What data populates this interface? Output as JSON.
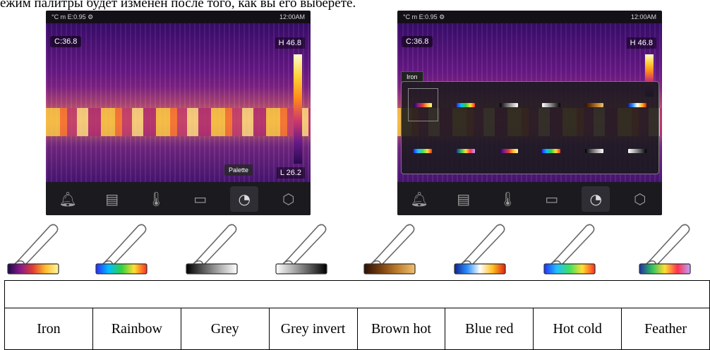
{
  "caption_top": "ежим палитры будет изменен после того, как вы его выберете.",
  "screens": [
    {
      "status": {
        "left": "°C  m  E:0.95  ⚙",
        "right": "12:00AM"
      },
      "center_temp": "C:36.8",
      "high_temp": "H 46.8",
      "low_temp": "L 26.2",
      "tooltip": "Palette"
    },
    {
      "status": {
        "left": "°C  m  E:0.95  ⚙",
        "right": "12:00AM"
      },
      "center_temp": "C:36.8",
      "high_temp": "H 46.8",
      "popup_label": "Iron"
    }
  ],
  "bottom_icons": [
    "bell-icon",
    "monitor-icon",
    "thermometer-icon",
    "image-icon",
    "palette-icon",
    "settings-icon"
  ],
  "palettes": [
    {
      "name": "Iron",
      "colors": [
        "#1a0a4a",
        "#8a1a8a",
        "#e04030",
        "#ffc030",
        "#fff6a0"
      ]
    },
    {
      "name": "Rainbow",
      "colors": [
        "#2a2aff",
        "#00c0ff",
        "#30d040",
        "#ffe030",
        "#ff3020"
      ]
    },
    {
      "name": "Grey",
      "colors": [
        "#000000",
        "#5a5a5a",
        "#b0b0b0",
        "#ffffff"
      ]
    },
    {
      "name": "Grey invert",
      "colors": [
        "#ffffff",
        "#b0b0b0",
        "#5a5a5a",
        "#000000"
      ]
    },
    {
      "name": "Brown hot",
      "colors": [
        "#2a1005",
        "#7a4010",
        "#c08030",
        "#f0c070"
      ]
    },
    {
      "name": "Blue red",
      "colors": [
        "#102090",
        "#2a90ff",
        "#ffffff",
        "#ffc020",
        "#e02010"
      ]
    },
    {
      "name": "Hot cold",
      "colors": [
        "#2030ff",
        "#20c0ff",
        "#40e060",
        "#ffe030",
        "#ff3020"
      ]
    },
    {
      "name": "Feather",
      "colors": [
        "#2030a0",
        "#30c060",
        "#ffe030",
        "#ff3050",
        "#c0a0ff"
      ]
    }
  ]
}
